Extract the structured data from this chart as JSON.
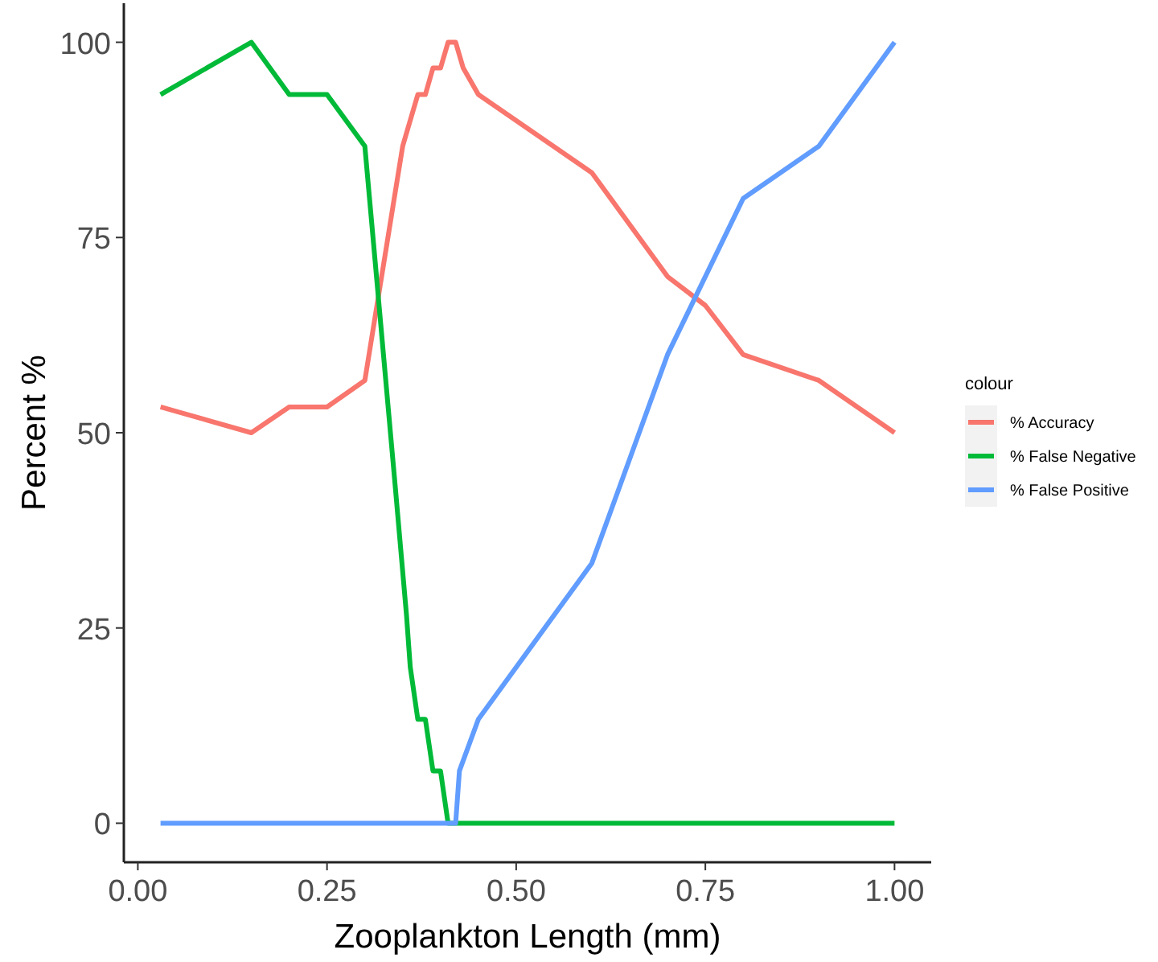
{
  "chart_data": {
    "type": "line",
    "xlabel": "Zooplankton Length (mm)",
    "ylabel": "Percent %",
    "legend_title": "colour",
    "legend": "right",
    "grid": false,
    "xlim": [
      -0.0185,
      1.0485
    ],
    "xticks": [
      {
        "value": 0,
        "label": "0.00"
      },
      {
        "value": 0.25,
        "label": "0.25"
      },
      {
        "value": 0.5,
        "label": "0.50"
      },
      {
        "value": 0.75,
        "label": "0.75"
      },
      {
        "value": 1,
        "label": "1.00"
      }
    ],
    "ylim": [
      -5,
      105
    ],
    "yticks": [
      0,
      25,
      50,
      75,
      100
    ],
    "series": [
      {
        "name": "% Accuracy",
        "color": "#f8766d",
        "x": [
          0.03,
          0.15,
          0.2,
          0.25,
          0.3,
          0.35,
          0.36,
          0.37,
          0.38,
          0.39,
          0.4,
          0.41,
          0.42,
          0.43,
          0.45,
          0.6,
          0.7,
          0.75,
          0.8,
          0.9,
          1.0
        ],
        "values": [
          53.3,
          50,
          53.3,
          53.3,
          56.7,
          86.7,
          90,
          93.3,
          93.3,
          96.7,
          96.7,
          100,
          100,
          96.7,
          93.3,
          83.3,
          70,
          66.3,
          60,
          56.7,
          50
        ]
      },
      {
        "name": "% False Negative",
        "color": "#00ba38",
        "x": [
          0.03,
          0.15,
          0.2,
          0.25,
          0.3,
          0.34,
          0.355,
          0.36,
          0.37,
          0.38,
          0.39,
          0.4,
          0.41,
          1.0
        ],
        "values": [
          93.3,
          100,
          93.3,
          93.3,
          86.7,
          43.3,
          26.7,
          20,
          13.3,
          13.3,
          6.7,
          6.7,
          0,
          0
        ]
      },
      {
        "name": "% False Positive",
        "color": "#619cff",
        "x": [
          0.03,
          0.42,
          0.425,
          0.45,
          0.6,
          0.7,
          0.8,
          0.9,
          1.0
        ],
        "values": [
          0,
          0,
          6.7,
          13.3,
          33.3,
          60,
          80,
          86.7,
          100
        ]
      }
    ]
  }
}
